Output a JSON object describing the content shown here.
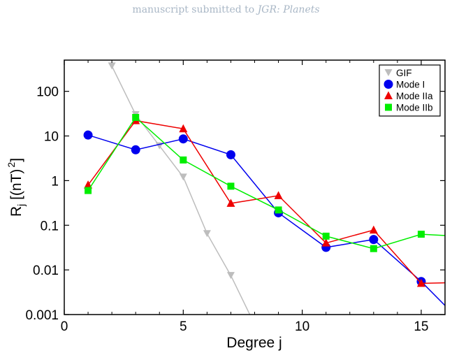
{
  "header": {
    "prefix": "manuscript submitted to",
    "journal": "JGR: Planets"
  },
  "chart_data": {
    "type": "line",
    "xlabel": "Degree j",
    "ylabel_main": "R",
    "ylabel_sub": "j",
    "ylabel_rest": " [(nT)",
    "ylabel_sup": "2",
    "ylabel_close": "]",
    "xlim": [
      0,
      16
    ],
    "ylim": [
      0.001,
      500
    ],
    "yscale": "log",
    "xticks": [
      0,
      5,
      10,
      15
    ],
    "xtick_labels": [
      "0",
      "5",
      "10",
      "15"
    ],
    "yticks": [
      0.001,
      0.01,
      0.1,
      1,
      10,
      100
    ],
    "ytick_labels": [
      "0.001",
      "0.01",
      "0.1",
      "1",
      "10",
      "100"
    ],
    "legend_position": "top-right",
    "series": [
      {
        "name": "GIF",
        "color": "#bdbdbd",
        "marker": "triangle-down",
        "x": [
          2,
          3,
          4,
          5,
          6,
          7,
          8
        ],
        "y": [
          370,
          30,
          6,
          1.2,
          0.065,
          0.0075,
          0.0006
        ]
      },
      {
        "name": "Mode I",
        "color": "#0000ee",
        "marker": "circle",
        "x": [
          1,
          3,
          5,
          7,
          9,
          11,
          13,
          15,
          16.3
        ],
        "y": [
          10.5,
          4.9,
          8.6,
          3.8,
          0.19,
          0.032,
          0.048,
          0.0055,
          0.0011
        ]
      },
      {
        "name": "Mode IIa",
        "color": "#ee0000",
        "marker": "triangle-up",
        "x": [
          1,
          3,
          5,
          7,
          9,
          11,
          13,
          15,
          16.3
        ],
        "y": [
          0.8,
          22,
          14.5,
          0.31,
          0.46,
          0.04,
          0.078,
          0.005,
          0.0052
        ]
      },
      {
        "name": "Mode IIb",
        "color": "#00ee00",
        "marker": "square",
        "x": [
          1,
          3,
          5,
          7,
          9,
          11,
          13,
          15,
          16.3
        ],
        "y": [
          0.6,
          26,
          2.9,
          0.75,
          0.22,
          0.057,
          0.03,
          0.063,
          0.058
        ]
      }
    ]
  }
}
